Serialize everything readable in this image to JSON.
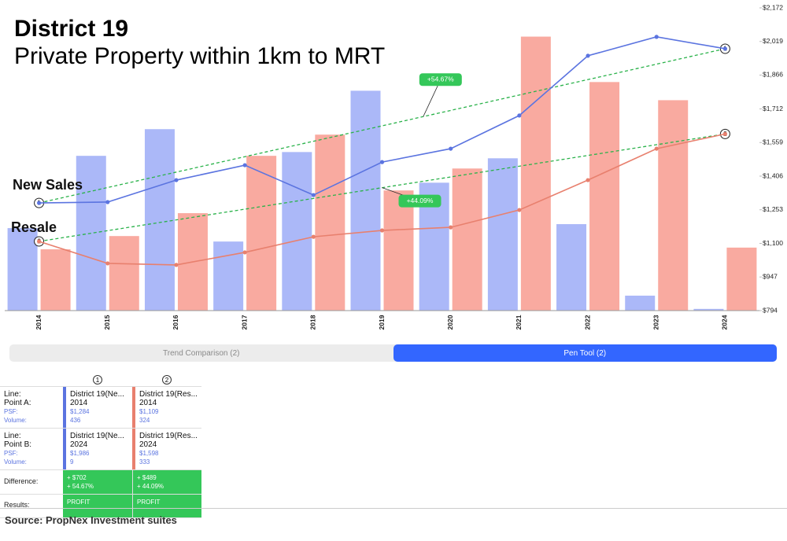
{
  "chart_data": {
    "type": "bar_line",
    "title": "District 19",
    "subtitle": "Private Property within 1km to MRT",
    "categories": [
      "2014",
      "2015",
      "2016",
      "2017",
      "2018",
      "2019",
      "2020",
      "2021",
      "2022",
      "2023",
      "2024"
    ],
    "series": [
      {
        "name": "New Sales",
        "kind": "bar",
        "color": "#abb8f8",
        "values": [
          436,
          818,
          959,
          365,
          838,
          1162,
          676,
          805,
          457,
          79,
          9
        ]
      },
      {
        "name": "Resale",
        "kind": "bar",
        "color": "#f9aaa0",
        "values": [
          324,
          394,
          515,
          818,
          930,
          635,
          751,
          1448,
          1208,
          1112,
          333
        ]
      },
      {
        "name": "New Sales",
        "kind": "line",
        "axis": "y2",
        "color": "#5b74e0",
        "values": [
          1284,
          1288,
          1388,
          1456,
          1320,
          1470,
          1531,
          1682,
          1954,
          2040,
          1986
        ]
      },
      {
        "name": "Resale",
        "kind": "line",
        "axis": "y2",
        "color": "#e8806e",
        "values": [
          1109,
          1009,
          1002,
          1059,
          1130,
          1159,
          1173,
          1252,
          1388,
          1531,
          1598
        ]
      }
    ],
    "ylim": [
      0,
      1600
    ],
    "y2lim": [
      794,
      2172
    ],
    "y2ticks": [
      {
        "value": 794,
        "label": "$794"
      },
      {
        "value": 947,
        "label": "$947"
      },
      {
        "value": 1100,
        "label": "$1,100"
      },
      {
        "value": 1253,
        "label": "$1,253"
      },
      {
        "value": 1406,
        "label": "$1,406"
      },
      {
        "value": 1559,
        "label": "$1,559"
      },
      {
        "value": 1712,
        "label": "$1,712"
      },
      {
        "value": 1866,
        "label": "$1,866"
      },
      {
        "value": 2019,
        "label": "$2,019"
      },
      {
        "value": 2172,
        "label": "$2,172"
      }
    ],
    "grid": false,
    "pen_lines": [
      {
        "marker": "1",
        "start": 1284,
        "end": 1986,
        "change": "+54.67%",
        "color": "#2ab24a"
      },
      {
        "marker": "2",
        "start": 1109,
        "end": 1598,
        "change": "+44.09%",
        "color": "#2ab24a"
      }
    ]
  },
  "tabs": [
    "Trend Comparison (2)",
    "Pen Tool (2)"
  ],
  "pen_table": {
    "markers": [
      "1",
      "2"
    ],
    "point_a": {
      "labels": [
        "Line:",
        "Point A:",
        "PSF:",
        "Volume:"
      ],
      "cells": [
        [
          "District 19(Ne...",
          "2014",
          "$1,284",
          "436"
        ],
        [
          "District 19(Res...",
          "2014",
          "$1,109",
          "324"
        ]
      ]
    },
    "point_b": {
      "labels": [
        "Line:",
        "Point B:",
        "PSF:",
        "Volume:"
      ],
      "cells": [
        [
          "District 19(Ne...",
          "2024",
          "$1,986",
          "9"
        ],
        [
          "District 19(Res...",
          "2024",
          "$1,598",
          "333"
        ]
      ]
    },
    "difference": {
      "label": "Difference:",
      "cells": [
        [
          "+ $702",
          "+ 54.67%"
        ],
        [
          "+ $489",
          "+ 44.09%"
        ]
      ]
    },
    "results": {
      "label": "Results:",
      "cells": [
        "PROFIT",
        "PROFIT"
      ]
    }
  },
  "source": "Source: PropNex Investment suites"
}
